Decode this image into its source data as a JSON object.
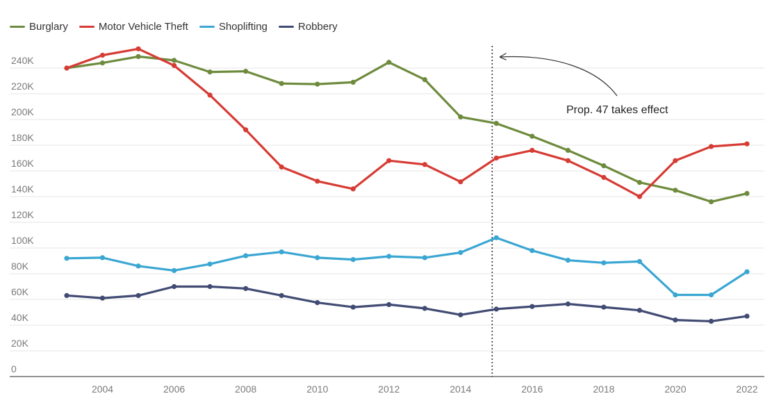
{
  "chart_data": {
    "type": "line",
    "title": "",
    "xlabel": "",
    "ylabel": "",
    "x": [
      2003,
      2004,
      2005,
      2006,
      2007,
      2008,
      2009,
      2010,
      2011,
      2012,
      2013,
      2014,
      2015,
      2016,
      2017,
      2018,
      2019,
      2020,
      2021,
      2022
    ],
    "x_ticks": [
      2004,
      2006,
      2008,
      2010,
      2012,
      2014,
      2016,
      2018,
      2020,
      2022
    ],
    "ylim": [
      0,
      260000
    ],
    "y_ticks": [
      0,
      20000,
      40000,
      60000,
      80000,
      100000,
      120000,
      140000,
      160000,
      180000,
      200000,
      220000,
      240000
    ],
    "y_tick_labels": [
      "0",
      "20K",
      "40K",
      "60K",
      "80K",
      "100K",
      "120K",
      "140K",
      "160K",
      "180K",
      "200K",
      "220K",
      "240K"
    ],
    "grid": true,
    "legend_position": "top-left",
    "series": [
      {
        "name": "Burglary",
        "color": "#6e8b3d",
        "values": [
          240000,
          244000,
          249000,
          246000,
          237000,
          237500,
          228000,
          227500,
          229000,
          244500,
          231000,
          202000,
          197000,
          187000,
          176000,
          164000,
          151000,
          145000,
          136000,
          142500
        ]
      },
      {
        "name": "Motor Vehicle Theft",
        "color": "#d63b34",
        "values": [
          240000,
          250000,
          255000,
          242000,
          219000,
          192000,
          163000,
          152000,
          146000,
          168000,
          165000,
          151500,
          170000,
          176000,
          168000,
          155000,
          140000,
          168000,
          179000,
          181000
        ]
      },
      {
        "name": "Shoplifting",
        "color": "#3aa6d2",
        "values": [
          92000,
          92500,
          86000,
          82500,
          87500,
          94000,
          97000,
          92500,
          91000,
          93500,
          92500,
          96500,
          108000,
          98000,
          90500,
          88500,
          89500,
          63500,
          63500,
          81500
        ]
      },
      {
        "name": "Robbery",
        "color": "#414b73",
        "values": [
          63000,
          61000,
          63000,
          70000,
          70000,
          68500,
          63000,
          57500,
          54000,
          56000,
          53000,
          48000,
          52500,
          54500,
          56500,
          54000,
          51500,
          44000,
          43000,
          47000
        ]
      }
    ],
    "annotations": [
      {
        "x": 2015,
        "style": "dotted-vertical-line",
        "text": "Prop. 47 takes effect"
      }
    ]
  }
}
